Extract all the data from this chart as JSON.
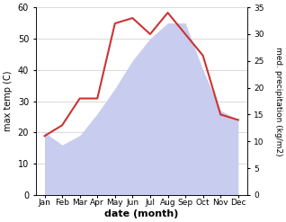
{
  "months": [
    "Jan",
    "Feb",
    "Mar",
    "Apr",
    "May",
    "Jun",
    "Jul",
    "Aug",
    "Sep",
    "Oct",
    "Nov",
    "Dec"
  ],
  "max_temp": [
    20,
    16,
    19,
    26,
    34,
    43,
    50,
    55,
    55,
    40,
    27,
    24
  ],
  "precipitation": [
    11,
    13,
    18,
    18,
    32,
    33,
    30,
    34,
    30,
    26,
    15,
    14
  ],
  "precip_color": "#cc3333",
  "temp_fill_color": "#c8ccee",
  "temp_ylim": [
    0,
    60
  ],
  "precip_ylim": [
    0,
    35
  ],
  "temp_yticks": [
    0,
    10,
    20,
    30,
    40,
    50,
    60
  ],
  "precip_yticks": [
    0,
    5,
    10,
    15,
    20,
    25,
    30,
    35
  ],
  "xlabel": "date (month)",
  "ylabel_left": "max temp (C)",
  "ylabel_right": "med. precipitation (kg/m2)"
}
